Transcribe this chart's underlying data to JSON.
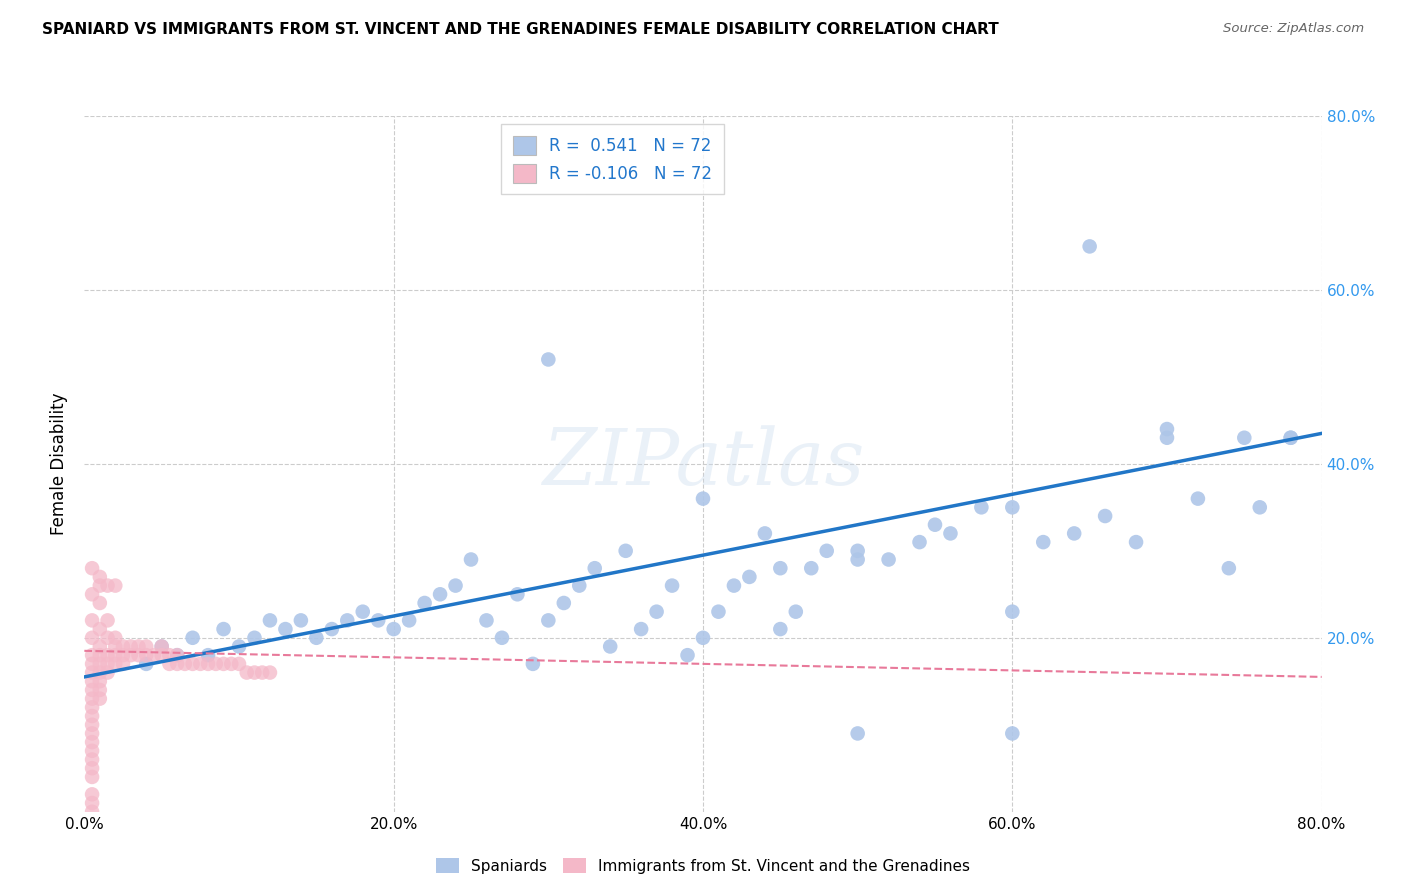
{
  "title": "SPANIARD VS IMMIGRANTS FROM ST. VINCENT AND THE GRENADINES FEMALE DISABILITY CORRELATION CHART",
  "source": "Source: ZipAtlas.com",
  "ylabel": "Female Disability",
  "xlim": [
    0.0,
    0.8
  ],
  "ylim": [
    0.0,
    0.8
  ],
  "blue_R": 0.541,
  "blue_N": 72,
  "pink_R": -0.106,
  "pink_N": 72,
  "blue_color": "#aec6e8",
  "pink_color": "#f4b8c8",
  "blue_line_color": "#2176c7",
  "pink_line_color": "#e8799a",
  "grid_color": "#cccccc",
  "background_color": "#ffffff",
  "blue_points_x": [
    0.04,
    0.05,
    0.06,
    0.07,
    0.08,
    0.09,
    0.1,
    0.11,
    0.12,
    0.13,
    0.14,
    0.15,
    0.16,
    0.17,
    0.18,
    0.19,
    0.2,
    0.21,
    0.22,
    0.23,
    0.24,
    0.25,
    0.26,
    0.27,
    0.28,
    0.29,
    0.3,
    0.31,
    0.32,
    0.33,
    0.34,
    0.35,
    0.36,
    0.37,
    0.38,
    0.39,
    0.4,
    0.41,
    0.42,
    0.43,
    0.44,
    0.45,
    0.46,
    0.47,
    0.48,
    0.5,
    0.52,
    0.54,
    0.56,
    0.58,
    0.6,
    0.62,
    0.64,
    0.66,
    0.68,
    0.7,
    0.72,
    0.74,
    0.76,
    0.78,
    0.45,
    0.5,
    0.55,
    0.6,
    0.65,
    0.7,
    0.75,
    0.78,
    0.3,
    0.4,
    0.5,
    0.6
  ],
  "blue_points_y": [
    0.17,
    0.19,
    0.18,
    0.2,
    0.18,
    0.21,
    0.19,
    0.2,
    0.22,
    0.21,
    0.22,
    0.2,
    0.21,
    0.22,
    0.23,
    0.22,
    0.21,
    0.22,
    0.24,
    0.25,
    0.26,
    0.29,
    0.22,
    0.2,
    0.25,
    0.17,
    0.22,
    0.24,
    0.26,
    0.28,
    0.19,
    0.3,
    0.21,
    0.23,
    0.26,
    0.18,
    0.2,
    0.23,
    0.26,
    0.27,
    0.32,
    0.21,
    0.23,
    0.28,
    0.3,
    0.29,
    0.29,
    0.31,
    0.32,
    0.35,
    0.23,
    0.31,
    0.32,
    0.34,
    0.31,
    0.43,
    0.36,
    0.28,
    0.35,
    0.43,
    0.28,
    0.3,
    0.33,
    0.35,
    0.65,
    0.44,
    0.43,
    0.43,
    0.52,
    0.36,
    0.09,
    0.09
  ],
  "pink_points_x": [
    0.005,
    0.005,
    0.005,
    0.005,
    0.005,
    0.005,
    0.005,
    0.005,
    0.005,
    0.005,
    0.005,
    0.005,
    0.005,
    0.005,
    0.005,
    0.005,
    0.005,
    0.005,
    0.005,
    0.005,
    0.01,
    0.01,
    0.01,
    0.01,
    0.01,
    0.01,
    0.01,
    0.01,
    0.01,
    0.01,
    0.015,
    0.015,
    0.015,
    0.015,
    0.015,
    0.02,
    0.02,
    0.02,
    0.02,
    0.025,
    0.025,
    0.025,
    0.03,
    0.03,
    0.035,
    0.035,
    0.04,
    0.04,
    0.045,
    0.05,
    0.05,
    0.055,
    0.055,
    0.06,
    0.06,
    0.065,
    0.07,
    0.075,
    0.08,
    0.085,
    0.09,
    0.095,
    0.1,
    0.105,
    0.11,
    0.115,
    0.12,
    0.01,
    0.015,
    0.02,
    0.005,
    0.005
  ],
  "pink_points_y": [
    0.28,
    0.25,
    0.22,
    0.2,
    0.18,
    0.17,
    0.16,
    0.15,
    0.14,
    0.13,
    0.12,
    0.11,
    0.1,
    0.09,
    0.08,
    0.07,
    0.06,
    0.05,
    0.04,
    0.02,
    0.27,
    0.24,
    0.21,
    0.19,
    0.18,
    0.17,
    0.16,
    0.15,
    0.14,
    0.13,
    0.22,
    0.2,
    0.18,
    0.17,
    0.16,
    0.2,
    0.19,
    0.18,
    0.17,
    0.19,
    0.18,
    0.17,
    0.19,
    0.18,
    0.19,
    0.18,
    0.19,
    0.18,
    0.18,
    0.19,
    0.18,
    0.18,
    0.17,
    0.18,
    0.17,
    0.17,
    0.17,
    0.17,
    0.17,
    0.17,
    0.17,
    0.17,
    0.17,
    0.16,
    0.16,
    0.16,
    0.16,
    0.26,
    0.26,
    0.26,
    0.0,
    0.01
  ],
  "blue_line_x0": 0.0,
  "blue_line_y0": 0.155,
  "blue_line_x1": 0.8,
  "blue_line_y1": 0.435,
  "pink_line_x0": 0.0,
  "pink_line_y0": 0.185,
  "pink_line_x1": 0.8,
  "pink_line_y1": 0.155
}
